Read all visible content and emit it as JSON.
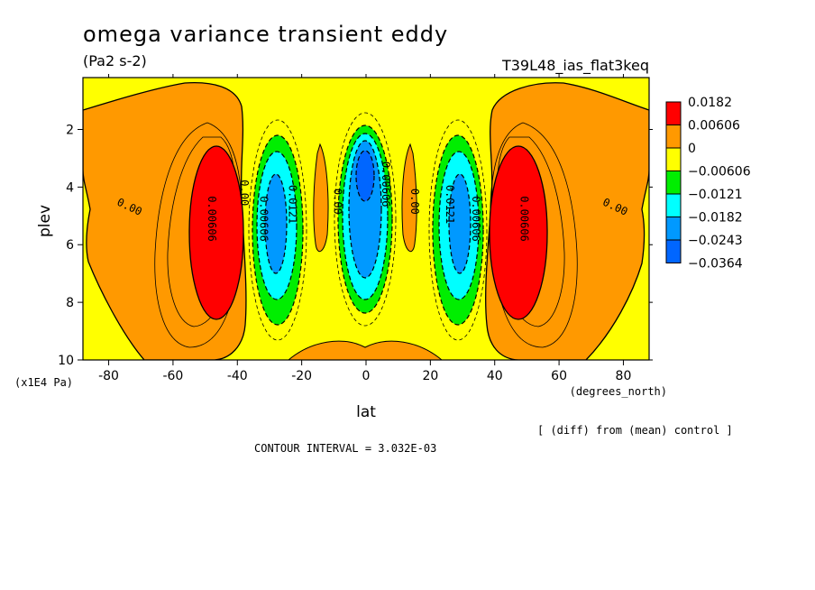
{
  "chart_data": {
    "type": "heatmap",
    "title": "omega variance transient eddy",
    "units": "(Pa2 s-2)",
    "run_name": "T39L48_ias_flat3keq",
    "xlabel": "lat",
    "x_units": "(degrees_north)",
    "ylabel": "plev",
    "y_units": "(x1E4 Pa)",
    "xlim": [
      -88,
      88
    ],
    "ylim": [
      10,
      0.2
    ],
    "x_ticks": [
      "-80",
      "-60",
      "-40",
      "-20",
      "0",
      "20",
      "40",
      "60",
      "80"
    ],
    "x_tick_values": [
      -80,
      -60,
      -40,
      -20,
      0,
      20,
      40,
      60,
      80
    ],
    "y_ticks": [
      "2",
      "4",
      "6",
      "8",
      "10"
    ],
    "y_tick_values": [
      2,
      4,
      6,
      8,
      10
    ],
    "legend": {
      "position": "right",
      "labels": [
        "0.0182",
        "0.00606",
        "0",
        "−0.00606",
        "−0.0121",
        "−0.0182",
        "−0.0243",
        "−0.0364"
      ],
      "colors": [
        "#ff0000",
        "#ff9900",
        "#ffff00",
        "#00ee00",
        "#00ffff",
        "#0099ff",
        "#0066ff"
      ]
    },
    "contour_labels": [
      {
        "text": "0.00",
        "lat": -74,
        "plev": 4.8
      },
      {
        "text": "0.00606",
        "lat": -49,
        "plev": 5.1
      },
      {
        "text": "0.00",
        "lat": -39,
        "plev": 4.2
      },
      {
        "text": "0.00606",
        "lat": -33,
        "plev": 5.1
      },
      {
        "text": "0.0121",
        "lat": -24,
        "plev": 4.6
      },
      {
        "text": "0.00",
        "lat": -10,
        "plev": 4.5
      },
      {
        "text": "0.00606",
        "lat": 5,
        "plev": 3.9
      },
      {
        "text": "0.00",
        "lat": 14,
        "plev": 4.5
      },
      {
        "text": "0.0121",
        "lat": 25,
        "plev": 4.6
      },
      {
        "text": "0.00606",
        "lat": 33,
        "plev": 5.1
      },
      {
        "text": "0.00606",
        "lat": 48,
        "plev": 5.1
      },
      {
        "text": "0.00",
        "lat": 77,
        "plev": 4.8
      }
    ],
    "contour_interval": "CONTOUR INTERVAL = 3.032E-03",
    "note": "[ (diff) from (mean) control ]"
  }
}
